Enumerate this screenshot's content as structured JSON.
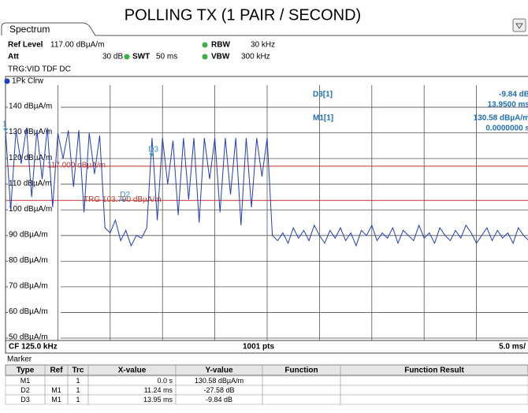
{
  "header": {
    "tab": "Spectrum",
    "ref_level_label": "Ref Level",
    "ref_level": "117.00 dBµA/m",
    "att_label": "Att",
    "att": "30 dB",
    "swt_label": "SWT",
    "swt": "50 ms",
    "rbw_label": "RBW",
    "rbw": "30 kHz",
    "vbw_label": "VBW",
    "vbw": "300 kHz",
    "trigger": "TRG:VID TDF DC"
  },
  "chart_data": {
    "type": "line",
    "title": "POLLING TX (1 PAIR / SECOND)",
    "xlim": [
      0,
      50
    ],
    "ylim": [
      50,
      150
    ],
    "yticks": [
      {
        "value": 140,
        "label": "140 dBµA/m"
      },
      {
        "value": 130,
        "label": "130 dBµA/m"
      },
      {
        "value": 120,
        "label": "120 dBµA/m"
      },
      {
        "value": 110,
        "label": "110 dBµA/m"
      },
      {
        "value": 100,
        "label": "100 dBµA/m"
      },
      {
        "value": 90,
        "label": "90 dBµA/m"
      },
      {
        "value": 80,
        "label": "80 dBµA/m"
      },
      {
        "value": 70,
        "label": "70 dBµA/m"
      },
      {
        "value": 60,
        "label": "60 dBµA/m"
      },
      {
        "value": 50,
        "label": "50 dBµA/m"
      }
    ],
    "grid": true,
    "x": [
      0,
      0.5,
      1,
      1.5,
      2,
      2.5,
      3,
      3.5,
      4,
      4.5,
      5,
      5.5,
      6,
      6.5,
      7,
      7.5,
      8,
      8.5,
      9,
      9.5,
      10,
      10.5,
      11,
      11.5,
      12,
      12.5,
      13,
      13.5,
      14,
      14.5,
      15,
      15.5,
      16,
      16.5,
      17,
      17.5,
      18,
      18.5,
      19,
      19.5,
      20,
      20.5,
      21,
      21.5,
      22,
      22.5,
      23,
      23.5,
      24,
      24.5,
      25,
      25.5,
      26,
      26.5,
      27,
      27.5,
      28,
      28.5,
      29,
      29.5,
      30,
      30.5,
      31,
      31.5,
      32,
      32.5,
      33,
      33.5,
      34,
      34.5,
      35,
      35.5,
      36,
      36.5,
      37,
      37.5,
      38,
      38.5,
      39,
      39.5,
      40,
      40.5,
      41,
      41.5,
      42,
      42.5,
      43,
      43.5,
      44,
      44.5,
      45,
      45.5,
      46,
      46.5,
      47,
      47.5,
      48,
      48.5,
      49,
      49.5,
      50
    ],
    "series": [
      {
        "name": "1Pk Clrw",
        "color": "#1f3fbf",
        "values": [
          131,
          100,
          131,
          118,
          132,
          105,
          131,
          112,
          132,
          101,
          130,
          120,
          131,
          109,
          131,
          99,
          130,
          114,
          129,
          93,
          91,
          96,
          88,
          92,
          86,
          90,
          89,
          93,
          128,
          96,
          128,
          110,
          127,
          98,
          128,
          104,
          128,
          95,
          128,
          112,
          128,
          99,
          128,
          106,
          128,
          94,
          128,
          101,
          128,
          113,
          128,
          90,
          88,
          91,
          87,
          93,
          89,
          92,
          88,
          94,
          90,
          87,
          92,
          89,
          93,
          88,
          91,
          86,
          92,
          90,
          94,
          88,
          91,
          89,
          93,
          87,
          92,
          90,
          88,
          94,
          89,
          91,
          87,
          93,
          90,
          88,
          92,
          89,
          94,
          91,
          87,
          90,
          93,
          88,
          92,
          89,
          91,
          87,
          93,
          90,
          88
        ]
      }
    ],
    "ref_lines": [
      {
        "value": 117,
        "label": "117.000 dBµA/m"
      },
      {
        "value": 103.7,
        "label": "TRG 103.700 dBµA/m"
      }
    ],
    "plot_markers": [
      {
        "label": "1",
        "x": 0,
        "y": 130.58
      },
      {
        "label": "D2",
        "x": 11.24,
        "y": 103
      },
      {
        "label": "D3",
        "x": 13.95,
        "y": 120.74
      }
    ],
    "readout": [
      {
        "name": "D3[1]",
        "value": "-9.84 dB",
        "position": "13.9500 ms"
      },
      {
        "name": "M1[1]",
        "value": "130.58 dBµA/m",
        "position": "0.0000000 s"
      }
    ],
    "footer": {
      "center": "CF 125.0 kHz",
      "points": "1001 pts",
      "span": "5.0 ms/"
    }
  },
  "marker_table": {
    "title": "Marker",
    "columns": [
      "Type",
      "Ref",
      "Trc",
      "X-value",
      "Y-value",
      "Function",
      "Function Result"
    ],
    "rows": [
      [
        "M1",
        null,
        1,
        "0.0 s",
        "130.58 dBµA/m"
      ],
      [
        "D2",
        "M1",
        1,
        "11.24 ms",
        "-27.58 dB"
      ],
      [
        "D3",
        "M1",
        1,
        "13.95 ms",
        "-9.84 dB"
      ]
    ]
  }
}
